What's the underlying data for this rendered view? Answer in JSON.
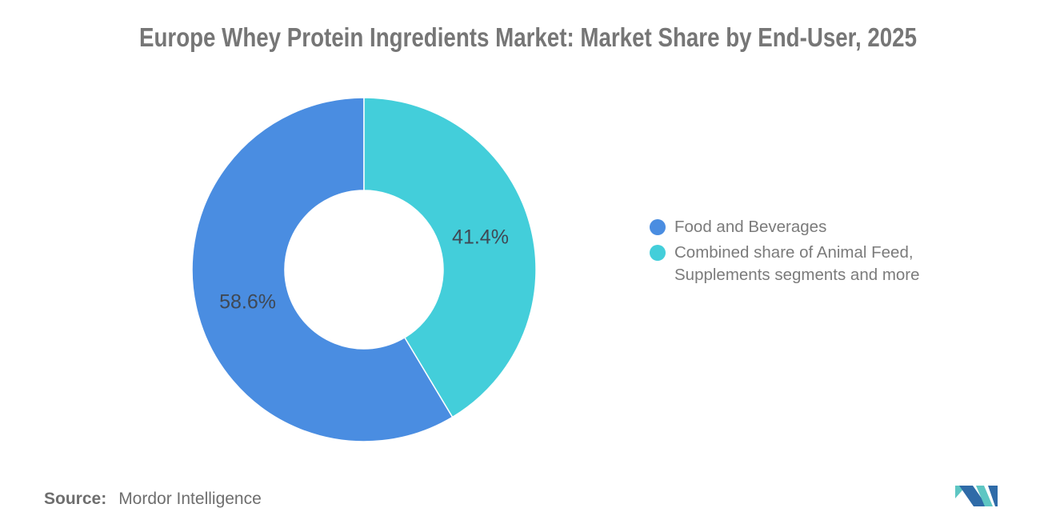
{
  "title": "Europe Whey Protein Ingredients Market: Market Share by End-User, 2025",
  "chart_data": {
    "type": "pie",
    "subtype": "donut",
    "segments": [
      {
        "label": "Food and Beverages",
        "value": 58.6,
        "color": "#4A8DE1"
      },
      {
        "label": "Combined share of Animal Feed, Supplements segments and more",
        "value": 41.4,
        "color": "#43CEDA"
      }
    ],
    "value_labels": [
      "58.6%",
      "41.4%"
    ],
    "start_angle_deg": -90,
    "direction": "counterclockwise-for-first-segment",
    "hole_ratio": 0.46,
    "legend_position": "right",
    "value_label_color": "#3F4854"
  },
  "source": {
    "prefix": "Source:",
    "text": "Mordor Intelligence"
  },
  "logo": {
    "alt": "mordor-intelligence-logo",
    "blue": "#2F6BA8",
    "teal": "#5EC6C3"
  }
}
